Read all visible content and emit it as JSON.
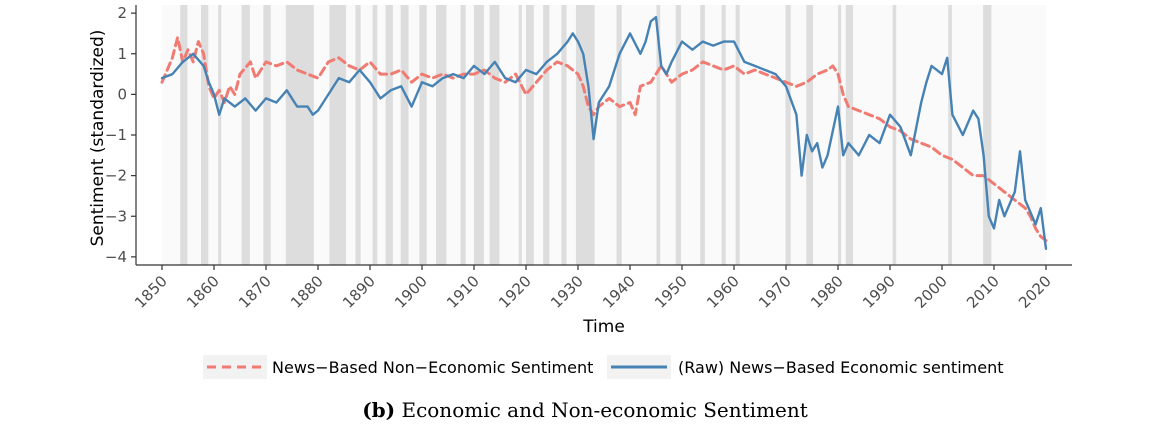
{
  "caption": {
    "label": "(b)",
    "text": "Economic and Non-economic Sentiment"
  },
  "chart_data": {
    "type": "line",
    "xlabel": "Time",
    "ylabel": "Sentiment (standardized)",
    "xlim": [
      1845,
      2025
    ],
    "ylim": [
      -4.2,
      2.2
    ],
    "x_ticks": [
      1850,
      1860,
      1870,
      1880,
      1890,
      1900,
      1910,
      1920,
      1930,
      1940,
      1950,
      1960,
      1970,
      1980,
      1990,
      2000,
      2010,
      2020
    ],
    "y_ticks": [
      2,
      1,
      0,
      -1,
      -2,
      -3,
      -4
    ],
    "grid": false,
    "legend_position": "bottom",
    "plot_region": [
      1850,
      2020
    ],
    "shaded_periods": [
      [
        1853.5,
        1854.9
      ],
      [
        1857.5,
        1858.9
      ],
      [
        1860.8,
        1861.4
      ],
      [
        1865.3,
        1866.9
      ],
      [
        1869.5,
        1870.9
      ],
      [
        1873.8,
        1879.2
      ],
      [
        1882.2,
        1885.4
      ],
      [
        1887.2,
        1888.2
      ],
      [
        1890.5,
        1891.4
      ],
      [
        1893.0,
        1894.4
      ],
      [
        1895.9,
        1897.4
      ],
      [
        1899.5,
        1900.9
      ],
      [
        1902.7,
        1904.7
      ],
      [
        1907.4,
        1908.4
      ],
      [
        1910.0,
        1911.9
      ],
      [
        1913.0,
        1914.9
      ],
      [
        1918.6,
        1919.2
      ],
      [
        1920.0,
        1921.5
      ],
      [
        1923.3,
        1924.5
      ],
      [
        1926.8,
        1927.8
      ],
      [
        1929.6,
        1933.2
      ],
      [
        1937.4,
        1938.4
      ],
      [
        1945.1,
        1945.8
      ],
      [
        1948.8,
        1949.8
      ],
      [
        1953.5,
        1954.4
      ],
      [
        1957.6,
        1958.4
      ],
      [
        1960.3,
        1961.1
      ],
      [
        1969.9,
        1970.9
      ],
      [
        1973.9,
        1975.2
      ],
      [
        1980.0,
        1980.6
      ],
      [
        1981.5,
        1982.9
      ],
      [
        1990.5,
        1991.2
      ],
      [
        2001.2,
        2001.9
      ],
      [
        2007.9,
        2009.5
      ]
    ],
    "series": [
      {
        "name": "News−Based Non−Economic Sentiment",
        "color": "#F07B72",
        "dash": "dashed",
        "x": [
          1850,
          1852,
          1853,
          1854,
          1855,
          1856,
          1857,
          1858,
          1859,
          1860,
          1861,
          1862,
          1863,
          1864,
          1865,
          1867,
          1868,
          1870,
          1872,
          1874,
          1876,
          1878,
          1880,
          1882,
          1884,
          1886,
          1888,
          1890,
          1892,
          1894,
          1896,
          1898,
          1900,
          1902,
          1904,
          1906,
          1908,
          1910,
          1912,
          1914,
          1916,
          1918,
          1920,
          1922,
          1924,
          1926,
          1928,
          1930,
          1931,
          1932,
          1933,
          1934,
          1936,
          1938,
          1940,
          1941,
          1942,
          1944,
          1946,
          1948,
          1950,
          1952,
          1954,
          1956,
          1958,
          1960,
          1962,
          1964,
          1966,
          1968,
          1970,
          1972,
          1974,
          1976,
          1978,
          1979,
          1980,
          1981,
          1982,
          1984,
          1986,
          1988,
          1990,
          1992,
          1994,
          1996,
          1998,
          2000,
          2002,
          2004,
          2006,
          2008,
          2010,
          2012,
          2014,
          2016,
          2017,
          2018,
          2019,
          2020
        ],
        "values": [
          0.3,
          0.9,
          1.4,
          0.8,
          1.1,
          0.8,
          1.3,
          1.0,
          0.2,
          -0.1,
          0.1,
          -0.2,
          0.2,
          0.0,
          0.5,
          0.8,
          0.4,
          0.8,
          0.7,
          0.8,
          0.6,
          0.5,
          0.4,
          0.8,
          0.9,
          0.7,
          0.6,
          0.8,
          0.5,
          0.5,
          0.6,
          0.3,
          0.5,
          0.4,
          0.5,
          0.4,
          0.5,
          0.5,
          0.6,
          0.4,
          0.3,
          0.5,
          0.0,
          0.3,
          0.6,
          0.8,
          0.7,
          0.5,
          0.2,
          -0.3,
          -0.5,
          -0.3,
          -0.1,
          -0.3,
          -0.2,
          -0.5,
          0.2,
          0.3,
          0.7,
          0.3,
          0.5,
          0.6,
          0.8,
          0.7,
          0.6,
          0.7,
          0.5,
          0.6,
          0.5,
          0.4,
          0.3,
          0.2,
          0.3,
          0.5,
          0.6,
          0.7,
          0.5,
          0.0,
          -0.3,
          -0.4,
          -0.5,
          -0.6,
          -0.8,
          -0.9,
          -1.1,
          -1.2,
          -1.3,
          -1.5,
          -1.6,
          -1.8,
          -2.0,
          -2.0,
          -2.2,
          -2.4,
          -2.6,
          -2.8,
          -3.0,
          -3.3,
          -3.5,
          -3.6
        ]
      },
      {
        "name": "(Raw) News−Based Economic sentiment",
        "color": "#4682B4",
        "dash": "solid",
        "x": [
          1850,
          1852,
          1854,
          1856,
          1858,
          1859,
          1860,
          1861,
          1862,
          1864,
          1866,
          1868,
          1870,
          1872,
          1874,
          1876,
          1878,
          1879,
          1880,
          1882,
          1884,
          1886,
          1888,
          1890,
          1892,
          1894,
          1896,
          1898,
          1900,
          1902,
          1904,
          1906,
          1908,
          1910,
          1912,
          1914,
          1916,
          1918,
          1920,
          1922,
          1924,
          1926,
          1928,
          1929,
          1930,
          1931,
          1932,
          1933,
          1934,
          1936,
          1938,
          1940,
          1942,
          1943,
          1944,
          1945,
          1946,
          1947,
          1948,
          1950,
          1952,
          1954,
          1956,
          1958,
          1960,
          1962,
          1964,
          1966,
          1968,
          1970,
          1972,
          1973,
          1974,
          1975,
          1976,
          1977,
          1978,
          1980,
          1981,
          1982,
          1984,
          1986,
          1988,
          1990,
          1992,
          1994,
          1996,
          1997,
          1998,
          2000,
          2001,
          2002,
          2004,
          2006,
          2007,
          2008,
          2009,
          2010,
          2011,
          2012,
          2014,
          2015,
          2016,
          2018,
          2019,
          2020
        ],
        "values": [
          0.4,
          0.5,
          0.8,
          1.0,
          0.7,
          0.3,
          0.0,
          -0.5,
          -0.1,
          -0.3,
          -0.1,
          -0.4,
          -0.1,
          -0.2,
          0.1,
          -0.3,
          -0.3,
          -0.5,
          -0.4,
          0.0,
          0.4,
          0.3,
          0.6,
          0.3,
          -0.1,
          0.1,
          0.2,
          -0.3,
          0.3,
          0.2,
          0.4,
          0.5,
          0.4,
          0.7,
          0.5,
          0.8,
          0.4,
          0.3,
          0.6,
          0.5,
          0.8,
          1.0,
          1.3,
          1.5,
          1.3,
          1.0,
          0.2,
          -1.1,
          -0.2,
          0.2,
          1.0,
          1.5,
          1.0,
          1.3,
          1.8,
          1.9,
          0.7,
          0.5,
          0.8,
          1.3,
          1.1,
          1.3,
          1.2,
          1.3,
          1.3,
          0.8,
          0.7,
          0.6,
          0.5,
          0.2,
          -0.5,
          -2.0,
          -1.0,
          -1.4,
          -1.2,
          -1.8,
          -1.5,
          -0.3,
          -1.5,
          -1.2,
          -1.5,
          -1.0,
          -1.2,
          -0.5,
          -0.8,
          -1.5,
          -0.2,
          0.3,
          0.7,
          0.5,
          0.9,
          -0.5,
          -1.0,
          -0.4,
          -0.6,
          -1.5,
          -3.0,
          -3.3,
          -2.6,
          -3.0,
          -2.4,
          -1.4,
          -2.6,
          -3.2,
          -2.8,
          -3.8
        ]
      }
    ]
  }
}
